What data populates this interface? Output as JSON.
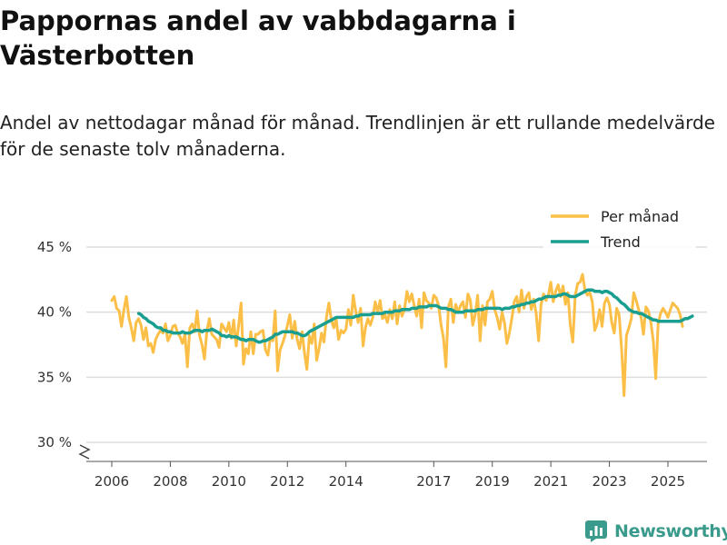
{
  "header": {
    "title": "Pappornas andel av vabbdagarna i Västerbotten",
    "subtitle": "Andel av nettodagar månad för månad. Trendlinjen är ett rullande medelvärde för de senaste tolv månaderna."
  },
  "brand": {
    "name": "Newsworthy",
    "icon": "newsworthy-logo-icon",
    "color": "#3a9a8c"
  },
  "colors": {
    "monthly": "#fbbf47",
    "trend": "#1a9e8f",
    "grid": "#dddddd"
  },
  "chart_data": {
    "type": "line",
    "title": "Pappornas andel av vabbdagarna i Västerbotten",
    "xlabel": "",
    "ylabel": "",
    "ylim": [
      29,
      45.5
    ],
    "xlim": [
      2006.0,
      2025.7
    ],
    "y_ticks": [
      30,
      35,
      40,
      45
    ],
    "y_tick_labels": [
      "30 %",
      "35 %",
      "40 %",
      "45 %"
    ],
    "y_axis_break": true,
    "x_ticks": [
      2006,
      2008,
      2010,
      2012,
      2014,
      2017,
      2019,
      2021,
      2023,
      2025
    ],
    "x_tick_labels": [
      "2006",
      "2008",
      "2010",
      "2012",
      "2014",
      "2017",
      "2019",
      "2021",
      "2023",
      "2025"
    ],
    "grid": true,
    "legend_position": "top-right",
    "series": [
      {
        "name": "Per månad",
        "color": "#fbbf47",
        "start": 2006.0,
        "step": 0.08333,
        "values": [
          40.9,
          41.2,
          40.3,
          40.1,
          38.9,
          40.2,
          41.2,
          39.6,
          38.8,
          37.8,
          39.2,
          39.5,
          39.0,
          37.9,
          38.8,
          37.4,
          37.6,
          36.9,
          37.9,
          38.3,
          38.6,
          38.4,
          39.1,
          37.8,
          38.2,
          38.9,
          39.0,
          38.4,
          38.1,
          37.6,
          38.3,
          35.8,
          38.8,
          39.1,
          38.5,
          40.1,
          38.2,
          37.5,
          36.4,
          38.6,
          39.5,
          38.3,
          38.1,
          37.9,
          37.3,
          39.1,
          38.8,
          38.5,
          39.2,
          38.0,
          39.4,
          37.4,
          39.0,
          40.7,
          36.0,
          37.2,
          36.8,
          38.5,
          36.8,
          38.3,
          38.3,
          38.5,
          38.6,
          37.1,
          36.7,
          38.0,
          37.8,
          40.1,
          35.5,
          37.1,
          37.6,
          38.2,
          39.0,
          39.8,
          38.0,
          39.3,
          37.9,
          37.2,
          38.5,
          36.9,
          35.6,
          38.2,
          37.6,
          39.1,
          36.3,
          37.2,
          38.4,
          37.7,
          39.6,
          40.7,
          39.4,
          38.8,
          39.5,
          37.9,
          38.6,
          38.4,
          38.7,
          40.2,
          39.0,
          41.3,
          40.1,
          39.2,
          40.3,
          37.4,
          38.8,
          39.5,
          39.0,
          39.6,
          40.8,
          40.0,
          40.9,
          39.5,
          39.8,
          39.2,
          40.2,
          39.5,
          40.8,
          39.1,
          40.5,
          39.7,
          40.2,
          41.6,
          40.8,
          41.4,
          40.5,
          39.7,
          41.0,
          38.8,
          41.5,
          40.9,
          40.7,
          40.3,
          41.3,
          41.1,
          40.5,
          39.0,
          38.0,
          35.8,
          40.4,
          41.0,
          39.2,
          40.6,
          40.0,
          40.5,
          40.8,
          39.6,
          41.4,
          40.9,
          39.0,
          39.8,
          41.3,
          37.8,
          40.5,
          39.0,
          40.8,
          41.0,
          41.6,
          40.2,
          39.6,
          38.7,
          40.0,
          39.2,
          37.6,
          38.4,
          39.5,
          40.8,
          41.2,
          40.0,
          41.7,
          40.3,
          41.2,
          41.5,
          40.2,
          41.0,
          39.9,
          37.8,
          40.6,
          41.4,
          40.9,
          41.3,
          42.3,
          40.8,
          41.6,
          42.1,
          41.2,
          42.0,
          40.6,
          41.5,
          39.0,
          37.7,
          41.3,
          42.2,
          42.3,
          42.9,
          41.7,
          41.3,
          41.5,
          40.8,
          38.6,
          39.1,
          40.2,
          38.9,
          40.7,
          41.1,
          40.6,
          39.2,
          38.4,
          40.3,
          39.8,
          37.2,
          33.6,
          38.2,
          38.8,
          39.5,
          41.5,
          40.9,
          40.2,
          39.6,
          38.3,
          40.4,
          40.1,
          39.2,
          37.8,
          34.9,
          39.1,
          39.9,
          40.3,
          40.0,
          39.6,
          40.2,
          40.7,
          40.5,
          40.3,
          39.8,
          38.9
        ]
      },
      {
        "name": "Trend",
        "color": "#1a9e8f",
        "start": 2006.92,
        "step": 0.08333,
        "values": [
          39.9,
          39.8,
          39.6,
          39.5,
          39.3,
          39.2,
          39.1,
          38.9,
          38.8,
          38.8,
          38.6,
          38.6,
          38.5,
          38.5,
          38.4,
          38.4,
          38.4,
          38.4,
          38.5,
          38.4,
          38.4,
          38.4,
          38.5,
          38.6,
          38.6,
          38.6,
          38.5,
          38.6,
          38.6,
          38.6,
          38.7,
          38.6,
          38.5,
          38.4,
          38.2,
          38.2,
          38.1,
          38.2,
          38.1,
          38.1,
          38.1,
          38.0,
          37.9,
          37.9,
          37.8,
          37.9,
          37.9,
          37.9,
          37.8,
          37.7,
          37.7,
          37.8,
          37.8,
          37.9,
          38.0,
          38.1,
          38.3,
          38.3,
          38.4,
          38.5,
          38.5,
          38.5,
          38.5,
          38.5,
          38.4,
          38.4,
          38.3,
          38.2,
          38.2,
          38.3,
          38.5,
          38.6,
          38.7,
          38.8,
          38.9,
          39.0,
          39.1,
          39.2,
          39.3,
          39.4,
          39.5,
          39.6,
          39.6,
          39.6,
          39.6,
          39.6,
          39.6,
          39.6,
          39.6,
          39.7,
          39.7,
          39.8,
          39.8,
          39.8,
          39.8,
          39.8,
          39.9,
          39.9,
          39.9,
          39.9,
          39.9,
          40.0,
          40.0,
          40.0,
          40.0,
          40.1,
          40.1,
          40.1,
          40.2,
          40.2,
          40.2,
          40.2,
          40.3,
          40.3,
          40.3,
          40.4,
          40.4,
          40.4,
          40.4,
          40.5,
          40.5,
          40.5,
          40.5,
          40.4,
          40.3,
          40.3,
          40.3,
          40.2,
          40.2,
          40.1,
          40.0,
          40.0,
          40.0,
          40.0,
          40.1,
          40.1,
          40.1,
          40.1,
          40.1,
          40.2,
          40.2,
          40.2,
          40.3,
          40.3,
          40.3,
          40.3,
          40.3,
          40.3,
          40.3,
          40.2,
          40.3,
          40.3,
          40.3,
          40.4,
          40.4,
          40.5,
          40.5,
          40.6,
          40.6,
          40.7,
          40.7,
          40.8,
          40.8,
          40.9,
          41.0,
          41.0,
          41.1,
          41.2,
          41.2,
          41.2,
          41.2,
          41.2,
          41.3,
          41.3,
          41.4,
          41.4,
          41.3,
          41.2,
          41.2,
          41.2,
          41.3,
          41.4,
          41.5,
          41.6,
          41.7,
          41.7,
          41.7,
          41.6,
          41.6,
          41.6,
          41.5,
          41.6,
          41.6,
          41.5,
          41.4,
          41.2,
          41.1,
          40.9,
          40.7,
          40.6,
          40.4,
          40.2,
          40.1,
          40.0,
          40.0,
          39.9,
          39.9,
          39.8,
          39.7,
          39.6,
          39.5,
          39.4,
          39.4,
          39.3,
          39.3,
          39.3,
          39.3,
          39.3,
          39.3,
          39.3,
          39.3,
          39.3,
          39.3,
          39.4,
          39.5,
          39.5,
          39.6,
          39.7
        ]
      }
    ]
  }
}
